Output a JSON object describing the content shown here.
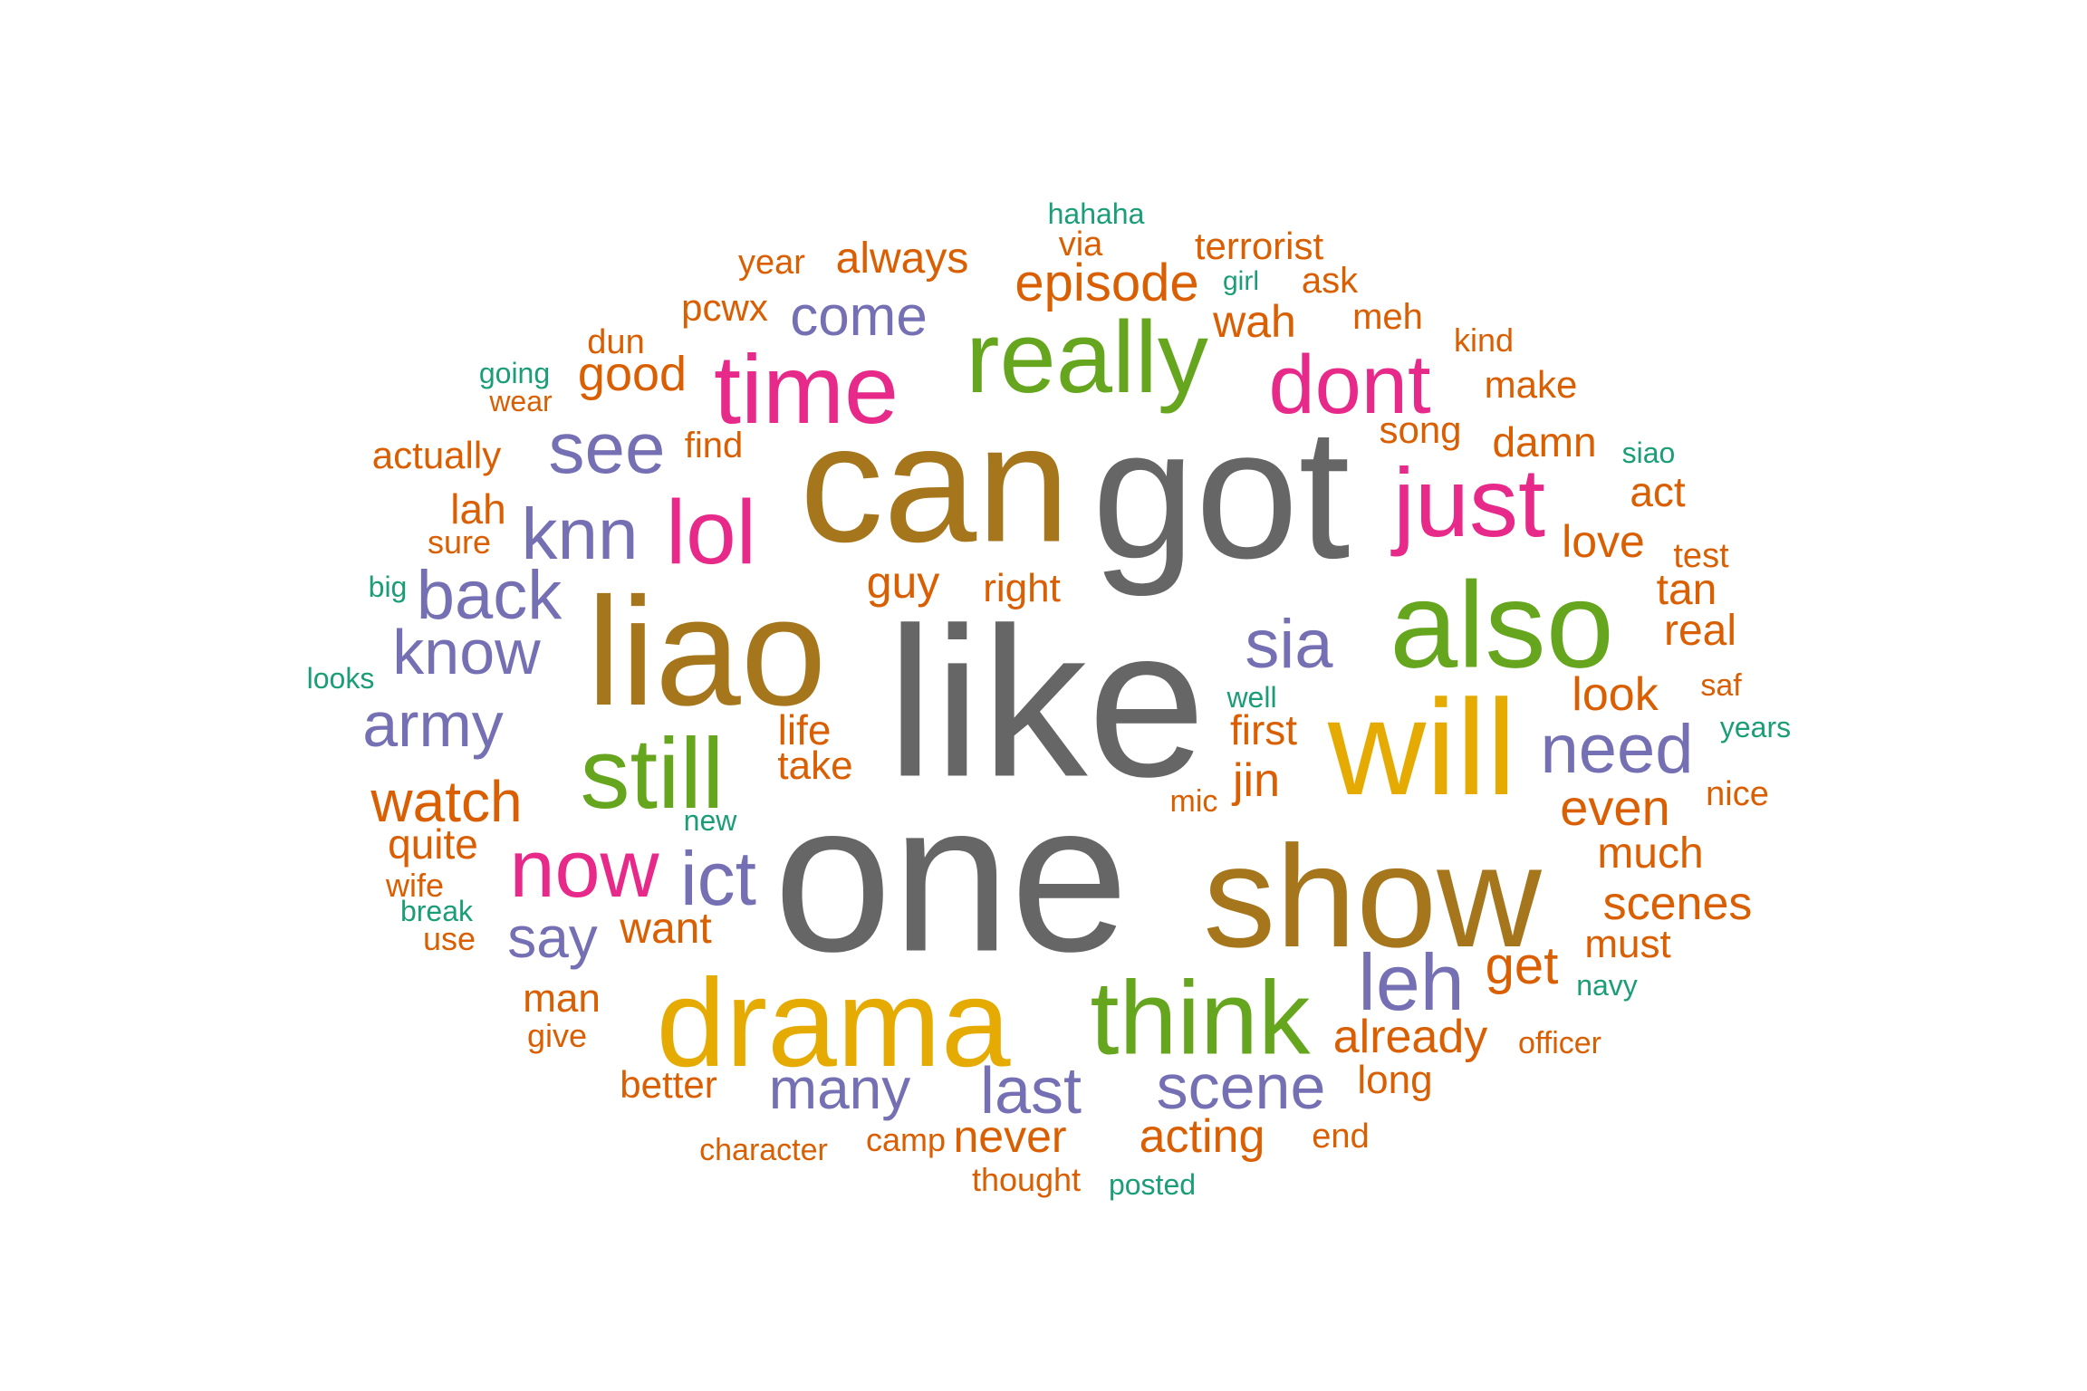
{
  "palette": {
    "gray": "#666666",
    "brown": "#A6761D",
    "gold": "#E6AB02",
    "green": "#66A61E",
    "pink": "#E7298A",
    "purple": "#7570B3",
    "orange": "#D95F02",
    "teal": "#1B9E77"
  },
  "words": [
    {
      "text": "like",
      "color": "gray"
    },
    {
      "text": "one",
      "color": "gray"
    },
    {
      "text": "got",
      "color": "gray"
    },
    {
      "text": "can",
      "color": "brown"
    },
    {
      "text": "liao",
      "color": "brown"
    },
    {
      "text": "show",
      "color": "brown"
    },
    {
      "text": "drama",
      "color": "gold"
    },
    {
      "text": "will",
      "color": "gold"
    },
    {
      "text": "also",
      "color": "green"
    },
    {
      "text": "really",
      "color": "green"
    },
    {
      "text": "think",
      "color": "green"
    },
    {
      "text": "still",
      "color": "green"
    },
    {
      "text": "time",
      "color": "pink"
    },
    {
      "text": "just",
      "color": "pink"
    },
    {
      "text": "dont",
      "color": "pink"
    },
    {
      "text": "now",
      "color": "pink"
    },
    {
      "text": "lol",
      "color": "pink"
    },
    {
      "text": "see",
      "color": "purple"
    },
    {
      "text": "knn",
      "color": "purple"
    },
    {
      "text": "back",
      "color": "purple"
    },
    {
      "text": "know",
      "color": "purple"
    },
    {
      "text": "army",
      "color": "purple"
    },
    {
      "text": "come",
      "color": "purple"
    },
    {
      "text": "sia",
      "color": "purple"
    },
    {
      "text": "need",
      "color": "purple"
    },
    {
      "text": "ict",
      "color": "purple"
    },
    {
      "text": "say",
      "color": "purple"
    },
    {
      "text": "many",
      "color": "purple"
    },
    {
      "text": "last",
      "color": "purple"
    },
    {
      "text": "scene",
      "color": "purple"
    },
    {
      "text": "leh",
      "color": "purple"
    },
    {
      "text": "hahaha",
      "color": "teal"
    },
    {
      "text": "via",
      "color": "orange"
    },
    {
      "text": "terrorist",
      "color": "orange"
    },
    {
      "text": "year",
      "color": "orange"
    },
    {
      "text": "always",
      "color": "orange"
    },
    {
      "text": "episode",
      "color": "orange"
    },
    {
      "text": "girl",
      "color": "teal"
    },
    {
      "text": "ask",
      "color": "orange"
    },
    {
      "text": "pcwx",
      "color": "orange"
    },
    {
      "text": "wah",
      "color": "orange"
    },
    {
      "text": "meh",
      "color": "orange"
    },
    {
      "text": "dun",
      "color": "orange"
    },
    {
      "text": "kind",
      "color": "orange"
    },
    {
      "text": "going",
      "color": "teal"
    },
    {
      "text": "good",
      "color": "orange"
    },
    {
      "text": "make",
      "color": "orange"
    },
    {
      "text": "wear",
      "color": "orange"
    },
    {
      "text": "song",
      "color": "orange"
    },
    {
      "text": "damn",
      "color": "orange"
    },
    {
      "text": "actually",
      "color": "orange"
    },
    {
      "text": "find",
      "color": "orange"
    },
    {
      "text": "siao",
      "color": "teal"
    },
    {
      "text": "act",
      "color": "orange"
    },
    {
      "text": "lah",
      "color": "orange"
    },
    {
      "text": "sure",
      "color": "orange"
    },
    {
      "text": "love",
      "color": "orange"
    },
    {
      "text": "test",
      "color": "orange"
    },
    {
      "text": "big",
      "color": "teal"
    },
    {
      "text": "guy",
      "color": "orange"
    },
    {
      "text": "right",
      "color": "orange"
    },
    {
      "text": "tan",
      "color": "orange"
    },
    {
      "text": "real",
      "color": "orange"
    },
    {
      "text": "looks",
      "color": "teal"
    },
    {
      "text": "well",
      "color": "teal"
    },
    {
      "text": "look",
      "color": "orange"
    },
    {
      "text": "saf",
      "color": "orange"
    },
    {
      "text": "life",
      "color": "orange"
    },
    {
      "text": "first",
      "color": "orange"
    },
    {
      "text": "years",
      "color": "teal"
    },
    {
      "text": "take",
      "color": "orange"
    },
    {
      "text": "jin",
      "color": "orange"
    },
    {
      "text": "watch",
      "color": "orange"
    },
    {
      "text": "mic",
      "color": "orange"
    },
    {
      "text": "even",
      "color": "orange"
    },
    {
      "text": "nice",
      "color": "orange"
    },
    {
      "text": "new",
      "color": "teal"
    },
    {
      "text": "quite",
      "color": "orange"
    },
    {
      "text": "much",
      "color": "orange"
    },
    {
      "text": "wife",
      "color": "orange"
    },
    {
      "text": "break",
      "color": "teal"
    },
    {
      "text": "scenes",
      "color": "orange"
    },
    {
      "text": "want",
      "color": "orange"
    },
    {
      "text": "use",
      "color": "orange"
    },
    {
      "text": "must",
      "color": "orange"
    },
    {
      "text": "get",
      "color": "orange"
    },
    {
      "text": "navy",
      "color": "teal"
    },
    {
      "text": "man",
      "color": "orange"
    },
    {
      "text": "already",
      "color": "orange"
    },
    {
      "text": "give",
      "color": "orange"
    },
    {
      "text": "officer",
      "color": "orange"
    },
    {
      "text": "better",
      "color": "orange"
    },
    {
      "text": "long",
      "color": "orange"
    },
    {
      "text": "acting",
      "color": "orange"
    },
    {
      "text": "character",
      "color": "orange"
    },
    {
      "text": "camp",
      "color": "orange"
    },
    {
      "text": "never",
      "color": "orange"
    },
    {
      "text": "end",
      "color": "orange"
    },
    {
      "text": "thought",
      "color": "orange"
    },
    {
      "text": "posted",
      "color": "teal"
    }
  ]
}
